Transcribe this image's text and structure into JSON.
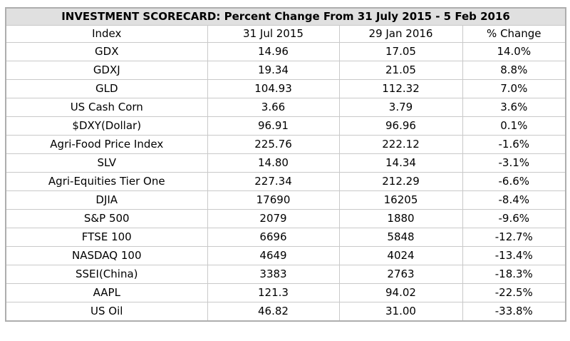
{
  "colors": {
    "page_background": "#ffffff",
    "title_bar_background": "#e0e0e0",
    "outer_border": "#aeaeae",
    "inner_border": "#c9c9c9",
    "text": "#000000"
  },
  "chart_data": {
    "type": "table",
    "title": "INVESTMENT SCORECARD: Percent Change From 31 July 2015 - 5 Feb 2016",
    "columns": [
      "Index",
      "31 Jul 2015",
      "29 Jan 2016",
      "% Change"
    ],
    "rows": [
      [
        "GDX",
        "14.96",
        "17.05",
        "14.0%"
      ],
      [
        "GDXJ",
        "19.34",
        "21.05",
        "8.8%"
      ],
      [
        "GLD",
        "104.93",
        "112.32",
        "7.0%"
      ],
      [
        "US Cash Corn",
        "3.66",
        "3.79",
        "3.6%"
      ],
      [
        "$DXY(Dollar)",
        "96.91",
        "96.96",
        "0.1%"
      ],
      [
        "Agri-Food Price Index",
        "225.76",
        "222.12",
        "-1.6%"
      ],
      [
        "SLV",
        "14.80",
        "14.34",
        "-3.1%"
      ],
      [
        "Agri-Equities Tier One",
        "227.34",
        "212.29",
        "-6.6%"
      ],
      [
        "DJIA",
        "17690",
        "16205",
        "-8.4%"
      ],
      [
        "S&P 500",
        "2079",
        "1880",
        "-9.6%"
      ],
      [
        "FTSE 100",
        "6696",
        "5848",
        "-12.7%"
      ],
      [
        "NASDAQ 100",
        "4649",
        "4024",
        "-13.4%"
      ],
      [
        "SSEI(China)",
        "3383",
        "2763",
        "-18.3%"
      ],
      [
        "AAPL",
        "121.3",
        "94.02",
        "-22.5%"
      ],
      [
        "US Oil",
        "46.82",
        "31.00",
        "-33.8%"
      ]
    ]
  }
}
